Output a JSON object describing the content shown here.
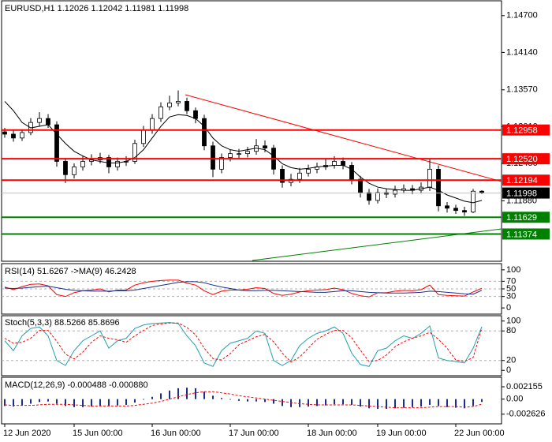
{
  "chart_data": [
    {
      "type": "candlestick",
      "title": "EURUSD,H1  1.12026 1.12042 1.11981 1.11998",
      "categories": [
        "12 Jun 2020",
        null,
        null,
        null,
        null,
        null,
        null,
        null,
        "15 Jun 00:00",
        null,
        null,
        null,
        null,
        null,
        null,
        null,
        null,
        "16 Jun 00:00",
        null,
        null,
        null,
        null,
        null,
        null,
        null,
        null,
        "17 Jun 00:00",
        null,
        null,
        null,
        null,
        null,
        null,
        null,
        null,
        "18 Jun 00:00",
        null,
        null,
        null,
        null,
        null,
        null,
        null,
        "19 Jun 00:00",
        null,
        null,
        null,
        null,
        null,
        null,
        null,
        null,
        "22 Jun 00:00",
        null,
        null,
        null
      ],
      "open": [
        1.1293,
        1.12895,
        1.12836,
        1.12919,
        1.13073,
        1.13133,
        1.13038,
        1.1248,
        1.12278,
        1.12396,
        1.1248,
        1.12503,
        1.12539,
        1.12396,
        1.1248,
        1.1248,
        1.12753,
        1.12955,
        1.13133,
        1.13311,
        1.1337,
        1.13394,
        1.13252,
        1.13133,
        1.12717,
        1.12361,
        1.12539,
        1.12598,
        1.12598,
        1.12634,
        1.12717,
        1.12682,
        1.12361,
        1.12159,
        1.12207,
        1.12302,
        1.12361,
        1.12396,
        1.1242,
        1.1248,
        1.1242,
        1.12207,
        1.12005,
        1.11886,
        1.12005,
        1.11981,
        1.1204,
        1.12064,
        1.1204,
        1.12088,
        1.12361,
        1.11803,
        1.11767,
        1.11732,
        1.11708,
        1.12026
      ],
      "high": [
        1.1299,
        1.1295,
        1.1297,
        1.1314,
        1.1323,
        1.132,
        1.1309,
        1.1253,
        1.1245,
        1.1256,
        1.1259,
        1.1261,
        1.1258,
        1.1254,
        1.1256,
        1.1281,
        1.1302,
        1.132,
        1.1338,
        1.1348,
        1.1356,
        1.1345,
        1.133,
        1.1319,
        1.1278,
        1.126,
        1.1266,
        1.1267,
        1.127,
        1.1282,
        1.128,
        1.1273,
        1.1242,
        1.1229,
        1.1238,
        1.1243,
        1.1246,
        1.1252,
        1.1256,
        1.1254,
        1.1247,
        1.1226,
        1.1206,
        1.1207,
        1.1206,
        1.1211,
        1.1213,
        1.1212,
        1.1216,
        1.1252,
        1.1242,
        1.1186,
        1.1182,
        1.1179,
        1.1206,
        1.12042
      ],
      "low": [
        1.1284,
        1.1278,
        1.1279,
        1.1288,
        1.1302,
        1.1299,
        1.124,
        1.1215,
        1.1222,
        1.1234,
        1.1242,
        1.1245,
        1.123,
        1.1234,
        1.1241,
        1.1244,
        1.127,
        1.129,
        1.1308,
        1.1326,
        1.1332,
        1.132,
        1.1306,
        1.1265,
        1.1224,
        1.123,
        1.1248,
        1.1253,
        1.1254,
        1.1258,
        1.1262,
        1.1228,
        1.1208,
        1.121,
        1.1215,
        1.1225,
        1.123,
        1.1235,
        1.1237,
        1.1236,
        1.1213,
        1.1193,
        1.1182,
        1.1184,
        1.1192,
        1.1193,
        1.1199,
        1.1198,
        1.1199,
        1.1203,
        1.1172,
        1.117,
        1.1168,
        1.1165,
        1.1169,
        1.11981
      ],
      "close": [
        1.12895,
        1.12836,
        1.12919,
        1.13073,
        1.13133,
        1.13038,
        1.1248,
        1.12278,
        1.12396,
        1.1248,
        1.12503,
        1.12539,
        1.12396,
        1.1248,
        1.1248,
        1.12753,
        1.12955,
        1.13133,
        1.13311,
        1.1337,
        1.13394,
        1.13252,
        1.13133,
        1.12717,
        1.12361,
        1.12539,
        1.12598,
        1.12598,
        1.12634,
        1.12717,
        1.12682,
        1.12361,
        1.12159,
        1.12207,
        1.12302,
        1.12361,
        1.12396,
        1.1242,
        1.1248,
        1.1242,
        1.12207,
        1.12005,
        1.11886,
        1.12005,
        1.11981,
        1.1204,
        1.12064,
        1.1204,
        1.12088,
        1.12361,
        1.11803,
        1.11767,
        1.11732,
        1.11708,
        1.12026,
        1.11998
      ],
      "up_color": "#ffffff",
      "down_color": "#000000",
      "series": [
        {
          "color": "#000000",
          "values": [
            1.13394,
            1.13252,
            1.13073,
            1.1299,
            1.13014,
            1.13038,
            1.12895,
            1.12753,
            1.12634,
            1.12563,
            1.12503,
            1.1248,
            1.12456,
            1.12456,
            1.1248,
            1.12539,
            1.12658,
            1.12836,
            1.13014,
            1.13157,
            1.13192,
            1.1318,
            1.13133,
            1.13014,
            1.12836,
            1.12717,
            1.12658,
            1.12634,
            1.12658,
            1.12682,
            1.12658,
            1.12563,
            1.12444,
            1.12385,
            1.12361,
            1.12373,
            1.12396,
            1.12408,
            1.1242,
            1.1242,
            1.12361,
            1.12242,
            1.12147,
            1.12088,
            1.12064,
            1.12052,
            1.1204,
            1.1204,
            1.12064,
            1.12088,
            1.1204,
            1.11969,
            1.11922,
            1.11874,
            1.1185,
            1.11886
          ]
        }
      ],
      "ylim": [
        1.10995,
        1.1489
      ],
      "yticks": [
        {
          "value": 1.147,
          "label": "1.14700"
        },
        {
          "value": 1.1414,
          "label": "1.14140"
        },
        {
          "value": 1.1357,
          "label": "1.13570"
        },
        {
          "value": 1.1301,
          "label": "1.13010"
        },
        {
          "value": 1.1245,
          "label": "1.12450"
        },
        {
          "value": 1.1188,
          "label": "1.11880"
        }
      ],
      "current": {
        "value": 1.11998,
        "label": "1.11998"
      },
      "levels": [
        {
          "value": 1.12958,
          "label": "1.12958",
          "color": "#ff0000"
        },
        {
          "value": 1.1252,
          "label": "1.12520",
          "color": "#ff0000"
        },
        {
          "value": 1.12194,
          "label": "1.12194",
          "color": "#ff0000"
        },
        {
          "value": 1.11629,
          "label": "1.11629",
          "color": "#008000"
        },
        {
          "value": 1.11374,
          "label": "1.11374",
          "color": "#008000"
        }
      ]
    },
    {
      "type": "line",
      "title": "RSI(14) 51.6267 ->MA(9) 46.2428",
      "series": [
        {
          "color": "#ff0000",
          "values": [
            55,
            48,
            56,
            62,
            63,
            58,
            35,
            30,
            40,
            45,
            47,
            50,
            42,
            47,
            47,
            60,
            66,
            70,
            72,
            73,
            73,
            65,
            60,
            45,
            35,
            44,
            47,
            47,
            49,
            53,
            51,
            38,
            33,
            36,
            42,
            45,
            47,
            48,
            52,
            48,
            38,
            32,
            29,
            40,
            40,
            44,
            46,
            45,
            48,
            60,
            35,
            33,
            32,
            31,
            42,
            51.6267
          ]
        },
        {
          "color": "#1a2f8c",
          "values": [
            52,
            51,
            52,
            54,
            56,
            57,
            53,
            49,
            46,
            45,
            44,
            44,
            44,
            45,
            45,
            47,
            51,
            55,
            59,
            63,
            67,
            69,
            69,
            66,
            60,
            55,
            51,
            47,
            45,
            45,
            46,
            46,
            45,
            44,
            43,
            42,
            41,
            41,
            43,
            45,
            45,
            43,
            41,
            40,
            39,
            39,
            39,
            40,
            41,
            44,
            43,
            41,
            39,
            37,
            36,
            46.2428
          ]
        }
      ],
      "ylim": [
        -8,
        108
      ],
      "yticks": [
        100,
        70,
        50,
        30,
        0
      ],
      "levels": [
        70,
        50,
        30
      ]
    },
    {
      "type": "line",
      "title": "Stoch(5,3,3) 88.5266 85.8696",
      "series": [
        {
          "color": "#20a0b0",
          "values": [
            60,
            40,
            70,
            85,
            88,
            70,
            20,
            10,
            40,
            60,
            70,
            80,
            45,
            60,
            65,
            85,
            92,
            95,
            96,
            97,
            95,
            70,
            50,
            15,
            8,
            40,
            55,
            60,
            65,
            80,
            75,
            20,
            10,
            20,
            50,
            65,
            75,
            80,
            88,
            75,
            35,
            12,
            8,
            40,
            45,
            60,
            70,
            65,
            75,
            90,
            25,
            20,
            18,
            15,
            45,
            88.5266
          ]
        },
        {
          "color": "#ff0000",
          "dashed": true,
          "values": [
            65,
            55,
            57,
            65,
            81,
            81,
            59,
            33,
            23,
            37,
            57,
            70,
            65,
            62,
            57,
            70,
            81,
            91,
            94,
            96,
            96,
            87,
            72,
            45,
            24,
            21,
            34,
            52,
            60,
            68,
            73,
            58,
            35,
            17,
            27,
            45,
            63,
            73,
            81,
            81,
            66,
            41,
            18,
            20,
            31,
            48,
            58,
            65,
            70,
            77,
            63,
            45,
            21,
            18,
            26,
            85.8696
          ]
        }
      ],
      "ylim": [
        -6,
        106
      ],
      "yticks": [
        100,
        80,
        20,
        0
      ],
      "levels": [
        80,
        20
      ]
    },
    {
      "type": "bar",
      "title": "MACD(12,26,9) -0.000488 -0.000880",
      "series": [
        {
          "color": "#1a2f8c",
          "kind": "bar",
          "values": [
            -0.0012,
            -0.0013,
            -0.0011,
            -0.0008,
            -0.0005,
            -0.0004,
            -0.0008,
            -0.0012,
            -0.0014,
            -0.0014,
            -0.0013,
            -0.0012,
            -0.0012,
            -0.0011,
            -0.001,
            -0.0006,
            -0.0001,
            0.0004,
            0.001,
            0.0015,
            0.0019,
            0.002,
            0.0019,
            0.0013,
            0.0006,
            0.0002,
            -0.0001,
            -0.0003,
            -0.0004,
            -0.0004,
            -0.0005,
            -0.0008,
            -0.0012,
            -0.0014,
            -0.0014,
            -0.0013,
            -0.0012,
            -0.0011,
            -0.0009,
            -0.0009,
            -0.001,
            -0.0013,
            -0.0016,
            -0.0017,
            -0.0017,
            -0.0016,
            -0.0015,
            -0.0014,
            -0.0013,
            -0.001,
            -0.0012,
            -0.0014,
            -0.0015,
            -0.0016,
            -0.0012,
            -0.000488
          ]
        },
        {
          "color": "#ff0000",
          "kind": "line",
          "dashed": true,
          "values": [
            -0.001,
            -0.0011,
            -0.0011,
            -0.0011,
            -0.001,
            -0.0009,
            -0.0009,
            -0.0009,
            -0.001,
            -0.0011,
            -0.0012,
            -0.0012,
            -0.0012,
            -0.0012,
            -0.0012,
            -0.0011,
            -0.0009,
            -0.0007,
            -0.0004,
            0,
            0.0004,
            0.0008,
            0.0011,
            0.0013,
            0.0013,
            0.0011,
            0.0009,
            0.0006,
            0.0004,
            0.0002,
            0,
            -0.0002,
            -0.0004,
            -0.0006,
            -0.0008,
            -0.0009,
            -0.001,
            -0.001,
            -0.001,
            -0.001,
            -0.001,
            -0.0011,
            -0.0012,
            -0.0013,
            -0.0014,
            -0.0015,
            -0.0015,
            -0.0015,
            -0.0015,
            -0.0014,
            -0.0013,
            -0.0013,
            -0.0013,
            -0.0014,
            -0.0013,
            -0.00088
          ]
        }
      ],
      "ylim": [
        -0.0039,
        0.0034
      ],
      "yticks": [
        0.002155,
        {
          "value": 0,
          "label": "0.00"
        },
        -0.002626
      ]
    }
  ]
}
